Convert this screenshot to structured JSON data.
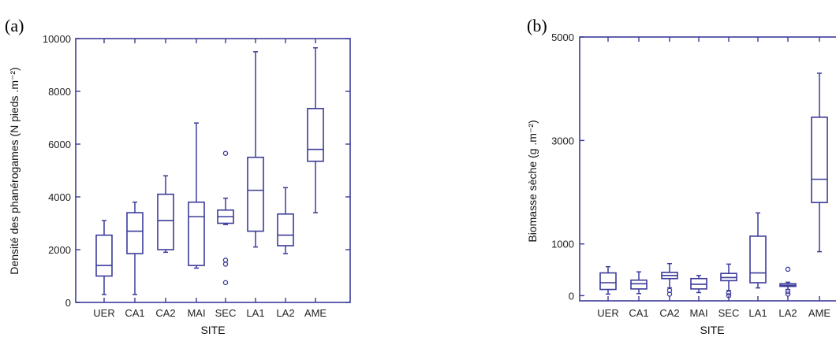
{
  "chart_data": [
    {
      "type": "box",
      "panel_label": "(a)",
      "xlabel": "SITE",
      "ylabel": "Densité des phanérogames (N pieds .m⁻²)",
      "ylim": [
        0,
        10000
      ],
      "yticks": [
        0,
        2000,
        4000,
        6000,
        8000,
        10000
      ],
      "categories": [
        "UER",
        "CA1",
        "CA2",
        "MAI",
        "SEC",
        "LA1",
        "LA2",
        "AME"
      ],
      "color": "#3b3b9a",
      "boxes": [
        {
          "min": 300,
          "q1": 1000,
          "median": 1400,
          "q3": 2550,
          "max": 3100,
          "outliers": []
        },
        {
          "min": 300,
          "q1": 1850,
          "median": 2700,
          "q3": 3400,
          "max": 3800,
          "outliers": []
        },
        {
          "min": 1900,
          "q1": 2000,
          "median": 3100,
          "q3": 4100,
          "max": 4800,
          "outliers": []
        },
        {
          "min": 1300,
          "q1": 1400,
          "median": 3250,
          "q3": 3800,
          "max": 6800,
          "outliers": []
        },
        {
          "min": 2950,
          "q1": 3000,
          "median": 3250,
          "q3": 3500,
          "max": 3950,
          "outliers": [
            5650,
            1600,
            1450,
            750
          ]
        },
        {
          "min": 2100,
          "q1": 2700,
          "median": 4250,
          "q3": 5500,
          "max": 9500,
          "outliers": []
        },
        {
          "min": 1850,
          "q1": 2150,
          "median": 2550,
          "q3": 3350,
          "max": 4350,
          "outliers": []
        },
        {
          "min": 3400,
          "q1": 5350,
          "median": 5800,
          "q3": 7350,
          "max": 9650,
          "outliers": []
        }
      ]
    },
    {
      "type": "box",
      "panel_label": "(b)",
      "xlabel": "SITE",
      "ylabel": "Biomasse sèche (g .m⁻²)",
      "ylim": [
        -100,
        5000
      ],
      "yticks": [
        0,
        1000,
        3000,
        5000
      ],
      "categories": [
        "UER",
        "CA1",
        "CA2",
        "MAI",
        "SEC",
        "LA1",
        "LA2",
        "AME"
      ],
      "color": "#3b3b9a",
      "boxes": [
        {
          "min": 30,
          "q1": 120,
          "median": 250,
          "q3": 440,
          "max": 560,
          "outliers": []
        },
        {
          "min": 40,
          "q1": 130,
          "median": 230,
          "q3": 300,
          "max": 460,
          "outliers": []
        },
        {
          "min": 150,
          "q1": 330,
          "median": 390,
          "q3": 450,
          "max": 620,
          "outliers": [
            100,
            30
          ]
        },
        {
          "min": 60,
          "q1": 130,
          "median": 220,
          "q3": 330,
          "max": 390,
          "outliers": []
        },
        {
          "min": 100,
          "q1": 290,
          "median": 350,
          "q3": 430,
          "max": 610,
          "outliers": [
            50,
            0
          ]
        },
        {
          "min": 150,
          "q1": 250,
          "median": 440,
          "q3": 1150,
          "max": 1600,
          "outliers": []
        },
        {
          "min": 120,
          "q1": 180,
          "median": 200,
          "q3": 230,
          "max": 260,
          "outliers": [
            510,
            80,
            30
          ]
        },
        {
          "min": 850,
          "q1": 1800,
          "median": 2250,
          "q3": 3450,
          "max": 4300,
          "outliers": []
        }
      ]
    }
  ]
}
